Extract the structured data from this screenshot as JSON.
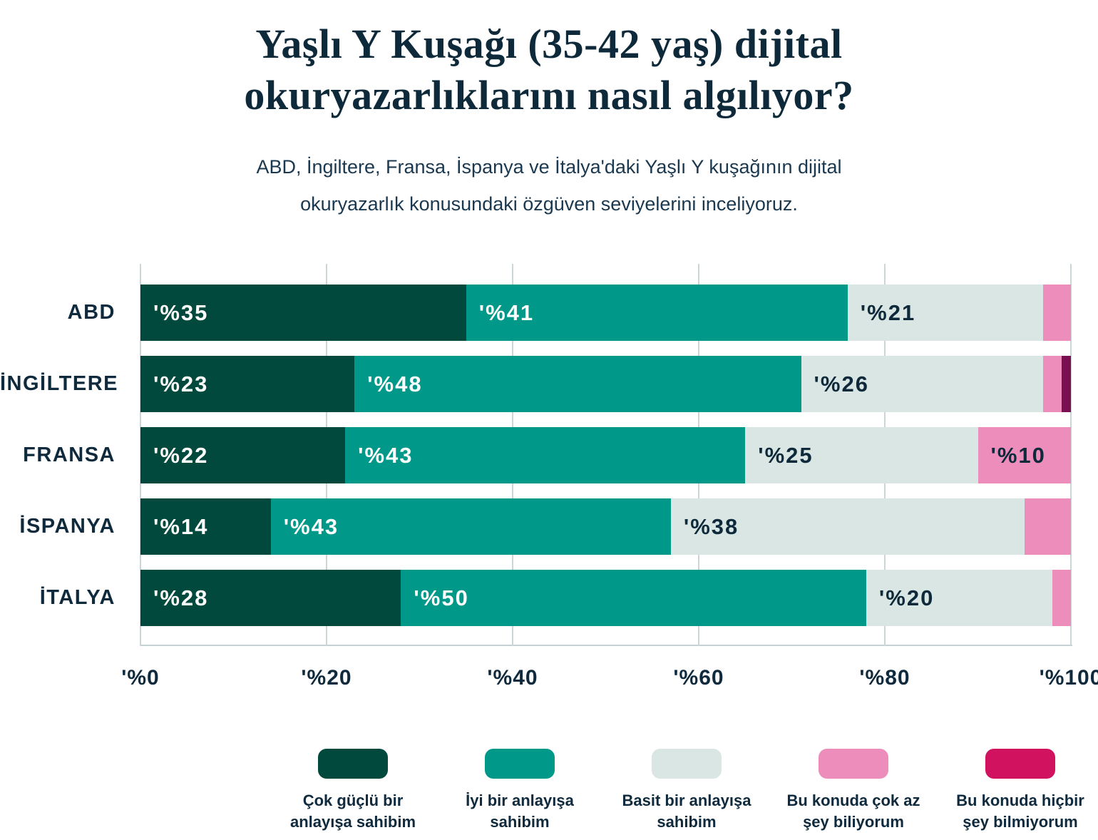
{
  "title": {
    "line1": "Yaşlı Y Kuşağı (35-42 yaş) dijital",
    "line2": "okuryazarlıklarını nasıl algılıyor?"
  },
  "subtitle": {
    "line1": "ABD, İngiltere, Fransa, İspanya ve İtalya'daki Yaşlı Y kuşağının dijital",
    "line2": "okuryazarlık konusundaki özgüven seviyelerini inceliyoruz."
  },
  "colors": {
    "background": "#ffffff",
    "text": "#0f2a3d",
    "gridline": "#ccd6d8",
    "axis_line": "#c5d2d4"
  },
  "chart_data": {
    "type": "bar",
    "variant": "horizontal-stacked",
    "unit": "percent",
    "categories": [
      "ABD",
      "İNGİLTERE",
      "FRANSA",
      "İSPANYA",
      "İTALYA"
    ],
    "series": [
      {
        "name": "Çok güçlü bir anlayışa sahibim",
        "legend_label": "Çok güçlü bir\nanlayışa sahibim",
        "color": "#00493c",
        "label_color": "#ffffff",
        "values": [
          35,
          23,
          22,
          14,
          28
        ]
      },
      {
        "name": "İyi bir anlayışa sahibim",
        "legend_label": "İyi bir anlayışa\nsahibim",
        "color": "#009889",
        "label_color": "#ffffff",
        "values": [
          41,
          48,
          43,
          43,
          50
        ]
      },
      {
        "name": "Basit bir anlayışa sahibim",
        "legend_label": "Basit bir anlayışa\nsahibim",
        "color": "#d9e6e4",
        "label_color": "#0e2a3a",
        "values": [
          21,
          26,
          25,
          38,
          20
        ]
      },
      {
        "name": "Bu konuda çok az şey biliyorum",
        "legend_label": "Bu konuda çok az\nşey biliyorum",
        "color": "#ec8dbb",
        "label_color": "#0e2a3a",
        "values": [
          3,
          2,
          10,
          5,
          2
        ]
      },
      {
        "name": "Bu konuda hiçbir şey bilmiyorum",
        "legend_label": "Bu konuda hiçbir\nşey bilmiyorum",
        "color": "#d1135f",
        "bar_color": "#7a0f52",
        "label_color": "#ffffff",
        "values": [
          0,
          1,
          0,
          0,
          0
        ]
      }
    ],
    "x_axis": {
      "min": 0,
      "max": 100,
      "ticks": [
        "'%0",
        "'%20",
        "'%40",
        "'%60",
        "'%80",
        "'%100"
      ]
    },
    "value_label_prefix": "'%",
    "label_min_value": 8,
    "grid": true,
    "legend_position": "bottom"
  }
}
